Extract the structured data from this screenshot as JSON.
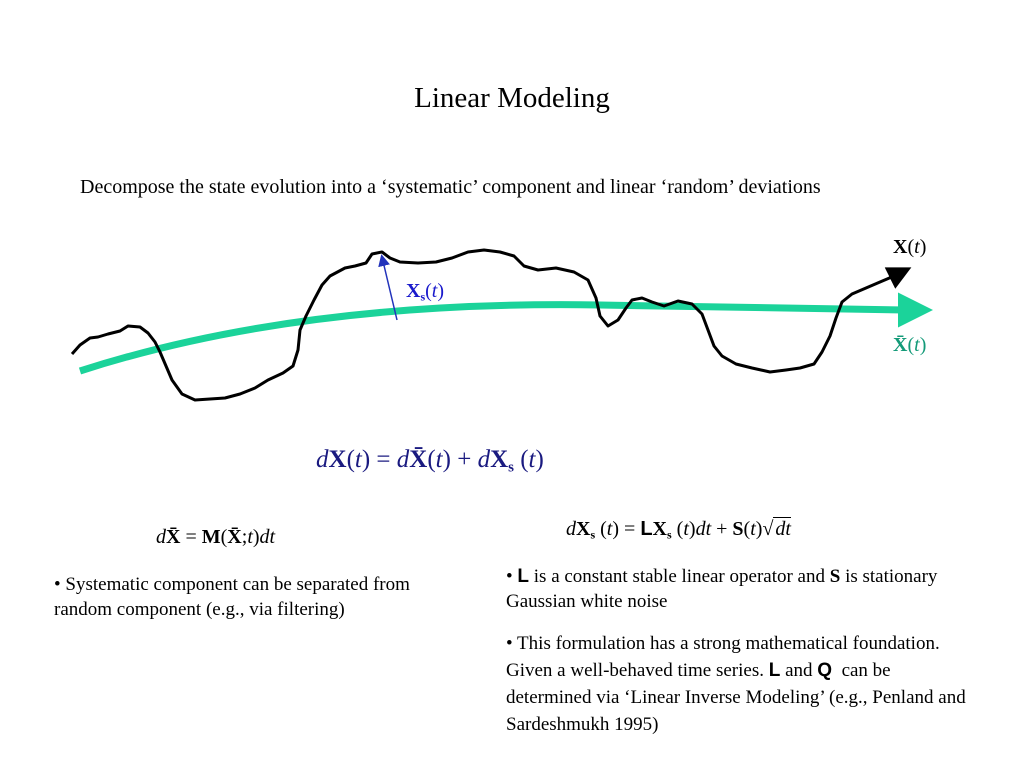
{
  "title": "Linear Modeling",
  "intro": "Decompose the state evolution into a ‘systematic’ component and  linear ‘random’ deviations",
  "labels": {
    "state": [
      "X",
      "(",
      "t",
      ")"
    ],
    "random": [
      "X",
      "s",
      "(",
      "t",
      ")"
    ],
    "systematic": [
      "X̄",
      "(",
      "t",
      ")"
    ]
  },
  "equations": {
    "main": [
      "d",
      "X",
      "(",
      "t",
      ")",
      " = ",
      "d",
      "X̄",
      "(",
      "t",
      ")",
      " + ",
      "d",
      "X",
      "s",
      " (",
      "t",
      ")"
    ],
    "systematic": [
      "d",
      "X̄",
      " = ",
      "M",
      "(",
      "X̄",
      ";",
      "t",
      ")",
      "dt"
    ],
    "random": [
      "d",
      "X",
      "s",
      " (",
      "t",
      ")",
      " = ",
      "L",
      "X",
      "s",
      " (",
      "t",
      ")",
      "dt",
      " + ",
      "S",
      "(",
      "t",
      ")",
      "√",
      "dt"
    ]
  },
  "left_bullet": "• Systematic component can be separated from random component (e.g., via filtering)",
  "right_bullets": [
    [
      "• ",
      "L",
      " is a constant stable linear operator and ",
      "S",
      " is stationary Gaussian white noise"
    ],
    [
      "• This formulation has a strong mathematical foundation. Given a well-behaved time series. ",
      "L",
      " and ",
      "Q",
      "  can be determined via ‘Linear Inverse Modeling’ (e.g., Penland and Sardeshmukh 1995)"
    ]
  ]
}
